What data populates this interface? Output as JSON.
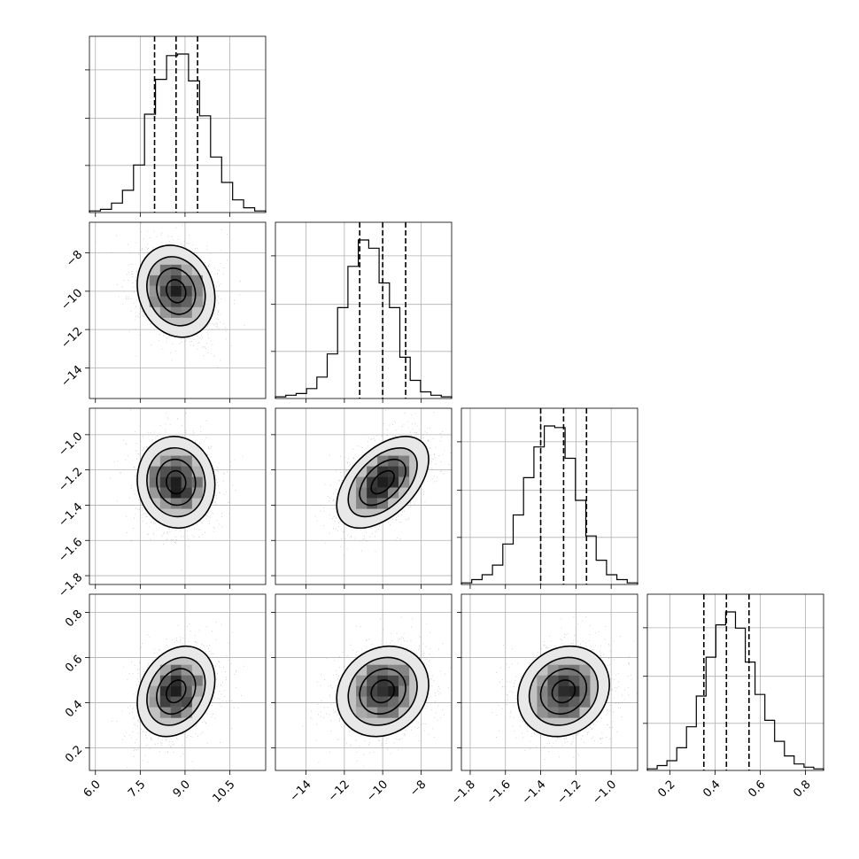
{
  "chart_data": {
    "type": "corner",
    "parameters": [
      {
        "range": [
          5.8,
          11.7
        ],
        "ticks": [
          6.0,
          7.5,
          9.0,
          10.5
        ],
        "tick_labels": [
          "6.0",
          "7.5",
          "9.0",
          "10.5"
        ],
        "mean": 8.7,
        "sigma": 0.65,
        "quantiles": [
          7.98,
          8.7,
          9.42
        ]
      },
      {
        "range": [
          -15.6,
          -6.4
        ],
        "ticks": [
          -14,
          -12,
          -10,
          -8
        ],
        "tick_labels": [
          "−14",
          "−12",
          "−10",
          "−8"
        ],
        "mean": -10.0,
        "sigma": 1.2,
        "quantiles": [
          -11.2,
          -10.0,
          -8.8
        ]
      },
      {
        "range": [
          -1.85,
          -0.85
        ],
        "ticks": [
          -1.8,
          -1.6,
          -1.4,
          -1.2,
          -1.0
        ],
        "tick_labels": [
          "−1.8",
          "−1.6",
          "−1.4",
          "−1.2",
          "−1.0"
        ],
        "mean": -1.27,
        "sigma": 0.13,
        "quantiles": [
          -1.4,
          -1.27,
          -1.14
        ]
      },
      {
        "range": [
          0.1,
          0.88
        ],
        "ticks": [
          0.2,
          0.4,
          0.6,
          0.8
        ],
        "tick_labels": [
          "0.2",
          "0.4",
          "0.6",
          "0.8"
        ],
        "mean": 0.45,
        "sigma": 0.1,
        "quantiles": [
          0.35,
          0.45,
          0.55
        ]
      }
    ],
    "correlations": [
      {
        "pair": [
          0,
          1
        ],
        "rho": -0.15
      },
      {
        "pair": [
          0,
          2
        ],
        "rho": -0.05
      },
      {
        "pair": [
          1,
          2
        ],
        "rho": 0.5
      },
      {
        "pair": [
          0,
          3
        ],
        "rho": 0.25
      },
      {
        "pair": [
          1,
          3
        ],
        "rho": 0.15
      },
      {
        "pair": [
          2,
          3
        ],
        "rho": 0.15
      }
    ],
    "histogram_counts": [
      [
        1,
        2,
        6,
        14,
        30,
        62,
        84,
        99,
        100,
        83,
        61,
        35,
        19,
        8,
        3,
        1
      ],
      [
        1,
        2,
        3,
        6,
        13,
        27,
        55,
        80,
        96,
        91,
        70,
        55,
        25,
        11,
        4,
        2,
        1
      ],
      [
        1,
        3,
        6,
        12,
        25,
        43,
        66,
        85,
        98,
        97,
        78,
        52,
        30,
        15,
        6,
        3,
        1
      ],
      [
        1,
        3,
        6,
        14,
        27,
        46,
        70,
        90,
        98,
        88,
        67,
        47,
        31,
        18,
        9,
        4,
        2,
        1
      ]
    ],
    "grid": true,
    "contour_levels_sigma": [
      0.5,
      1.0,
      1.5,
      2.0
    ]
  }
}
